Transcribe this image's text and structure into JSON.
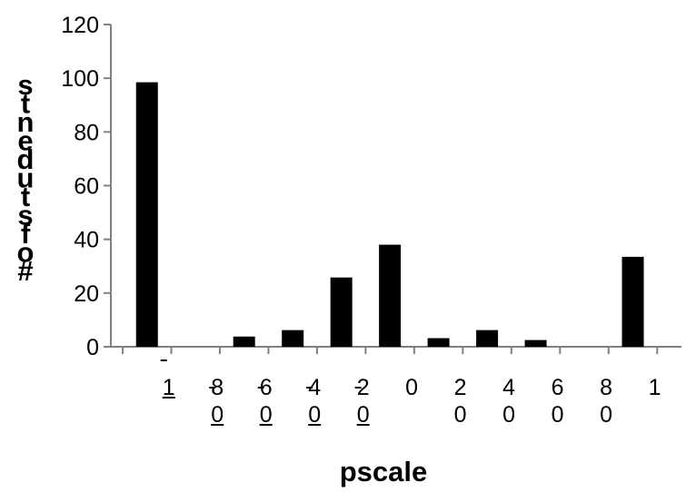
{
  "chart_data": {
    "type": "bar",
    "categories": [
      "-1",
      "-0.8",
      "-0.6",
      "-0.4",
      "-0.2",
      "0",
      "0.2",
      "0.4",
      "0.6",
      "0.8",
      "1"
    ],
    "values": [
      98.5,
      0,
      3.8,
      6.2,
      25.8,
      38,
      3.2,
      6.2,
      2.5,
      0,
      33.5
    ],
    "category_label_lines": [
      [
        "1"
      ],
      [
        "8",
        "0"
      ],
      [
        "6",
        "0"
      ],
      [
        "4",
        "0"
      ],
      [
        "2",
        "0"
      ],
      [
        "0"
      ],
      [
        "2",
        "0"
      ],
      [
        "4",
        "0"
      ],
      [
        "6",
        "0"
      ],
      [
        "8",
        "0"
      ],
      [
        "1"
      ]
    ],
    "underlined_label_lines": [
      [
        0
      ],
      [
        1
      ],
      [
        1
      ],
      [
        1
      ],
      [
        1
      ],
      [],
      [],
      [],
      [],
      [],
      []
    ],
    "title": "",
    "xlabel": "pscale",
    "ylabel": "# of students",
    "ylabel_glyphs": [
      "s",
      "t",
      "n",
      "e",
      "d",
      "u",
      "t",
      "s",
      "f",
      "o",
      "#"
    ],
    "ylim": [
      0,
      120
    ],
    "yticks": [
      0,
      20,
      40,
      60,
      80,
      100,
      120
    ],
    "grid": false,
    "legend": "none",
    "bar_color": "#000000"
  }
}
